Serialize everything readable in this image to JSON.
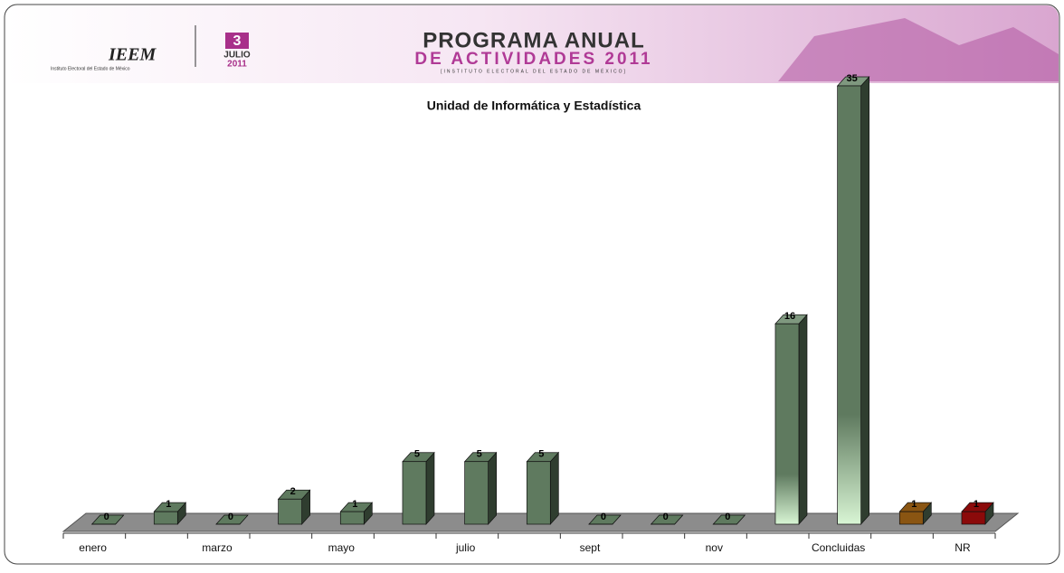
{
  "header": {
    "logo": "IEEM",
    "logo_caption": "Instituto Electoral del Estado de México",
    "badge_day": "3",
    "badge_month": "JULIO",
    "badge_year": "2011",
    "title_line1": "PROGRAMA ANUAL",
    "title_line2": "DE ACTIVIDADES 2011",
    "title_line3": "[INSTITUTO ELECTORAL DEL ESTADO DE MÉXICO]"
  },
  "chart_data": {
    "type": "bar3d",
    "title": "Unidad de Informática y Estadística",
    "categories": [
      "enero",
      null,
      "marzo",
      null,
      "mayo",
      null,
      "julio",
      null,
      "sept",
      null,
      "nov",
      null,
      "Concluidas",
      null,
      "NR"
    ],
    "values": [
      0,
      1,
      0,
      2,
      1,
      5,
      5,
      5,
      0,
      0,
      0,
      16,
      35,
      1,
      1
    ],
    "colors": [
      "#5f7a5f",
      "#5f7a5f",
      "#5f7a5f",
      "#5f7a5f",
      "#5f7a5f",
      "#5f7a5f",
      "#5f7a5f",
      "#5f7a5f",
      "#5f7a5f",
      "#5f7a5f",
      "#5f7a5f",
      "gradient",
      "gradient",
      "#8a5512",
      "#8b0a0a"
    ]
  }
}
